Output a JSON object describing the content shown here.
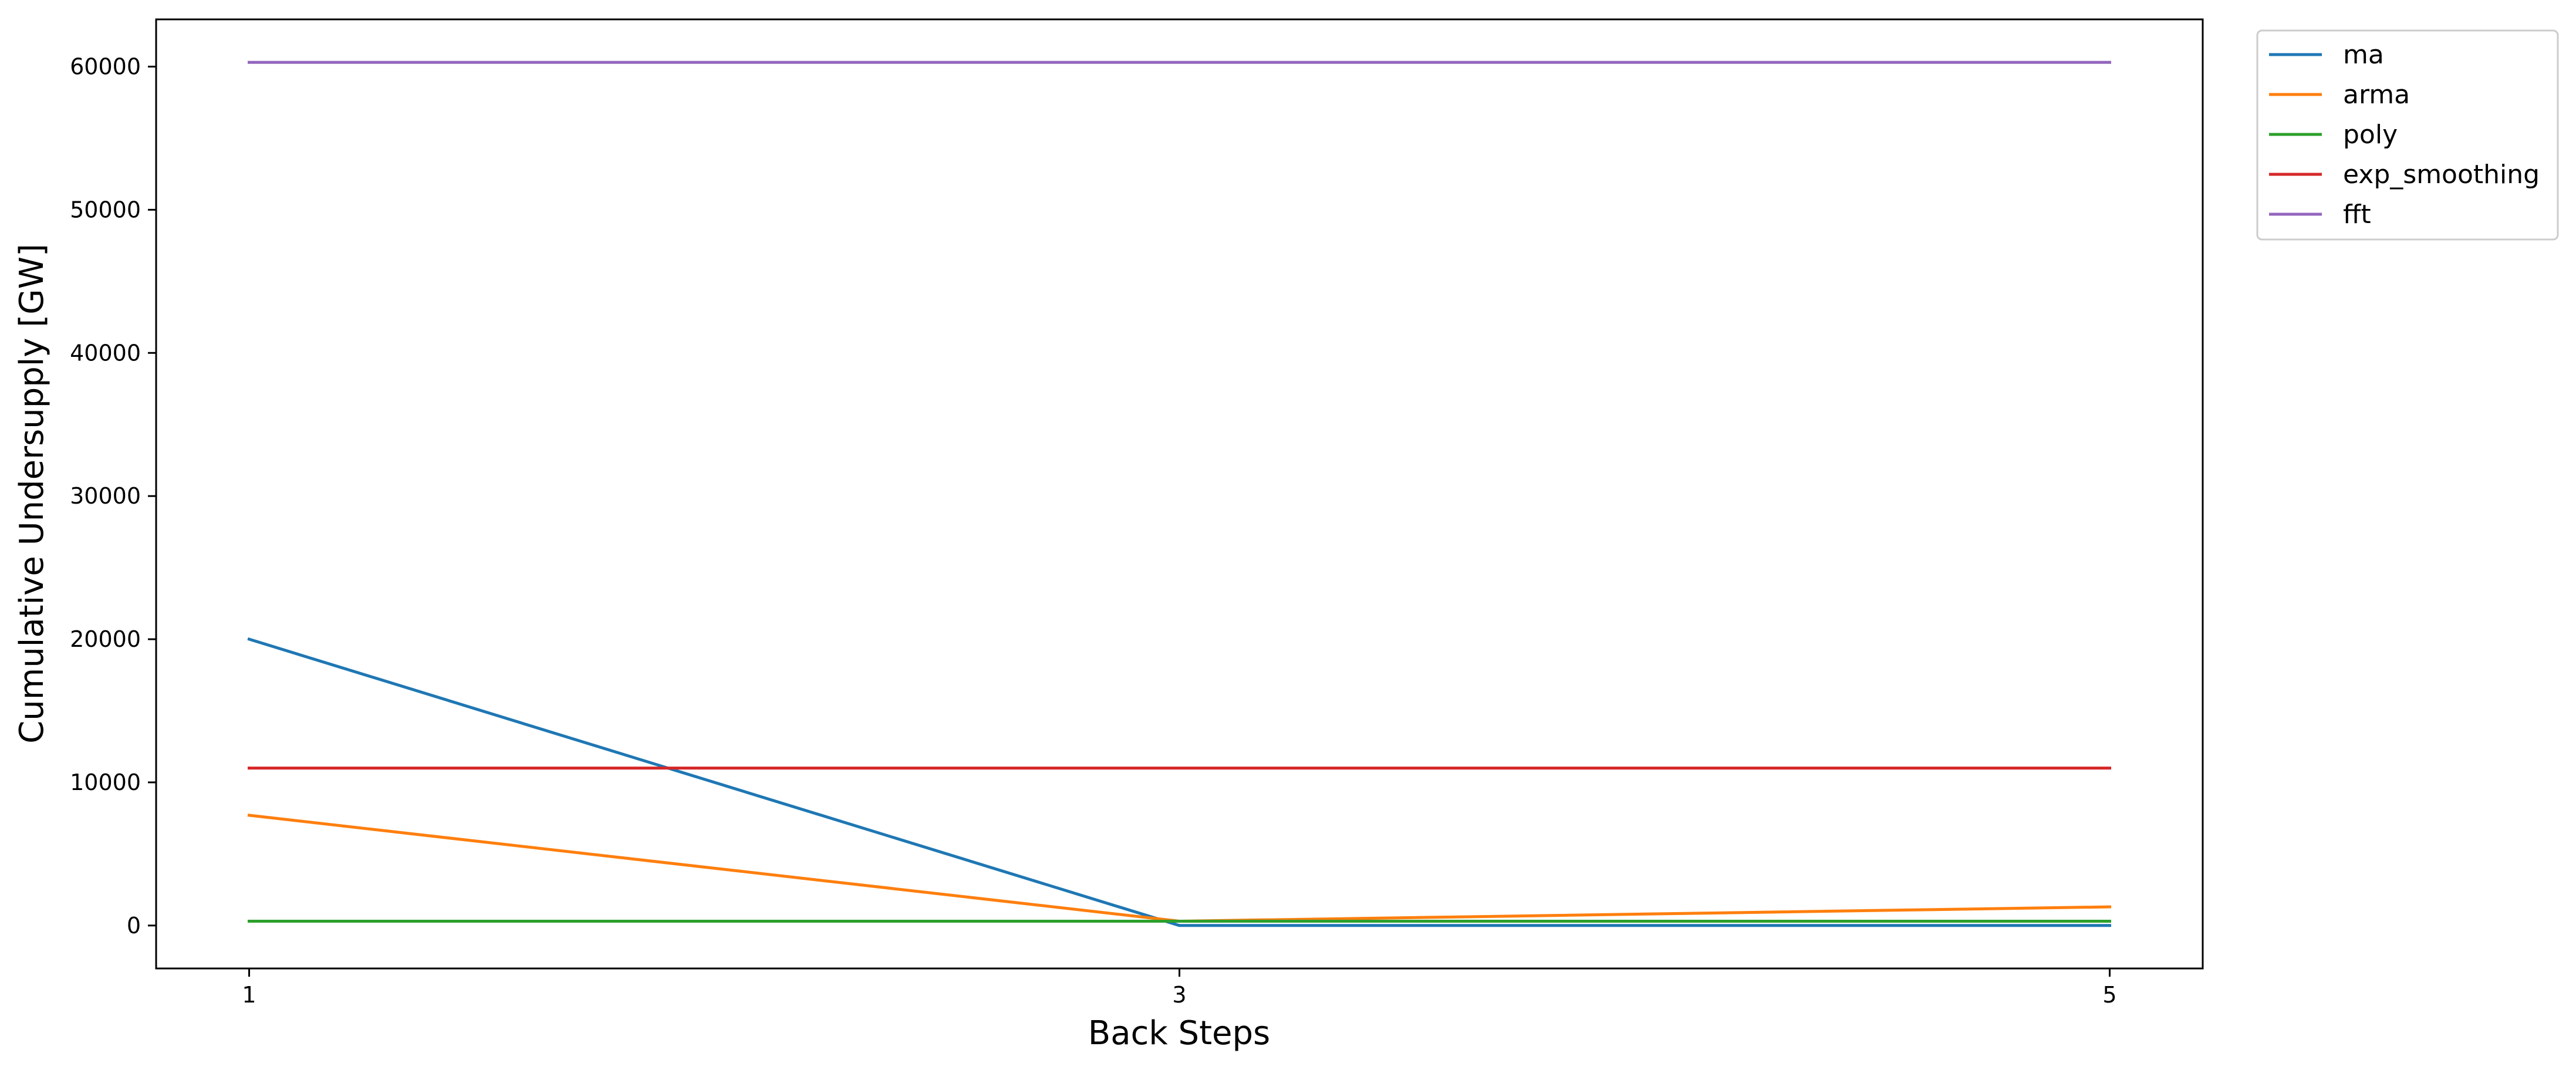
{
  "chart_data": {
    "type": "line",
    "xlabel": "Back Steps",
    "ylabel": "Cumulative Undersupply [GW]",
    "x": [
      1,
      3,
      5
    ],
    "xticks": [
      "1",
      "3",
      "5"
    ],
    "xlim": [
      0.8,
      5.2
    ],
    "ylim": [
      -3000,
      63300
    ],
    "yticks": [
      0,
      10000,
      20000,
      30000,
      40000,
      50000,
      60000
    ],
    "ytick_labels": [
      "0",
      "10000",
      "20000",
      "30000",
      "40000",
      "50000",
      "60000"
    ],
    "grid": false,
    "legend_position": "upper-right, outside plot",
    "series": [
      {
        "name": "ma",
        "color": "#1f77b4",
        "values": [
          20000,
          0,
          0
        ]
      },
      {
        "name": "arma",
        "color": "#ff7f0e",
        "values": [
          7700,
          300,
          1300
        ]
      },
      {
        "name": "poly",
        "color": "#2ca02c",
        "values": [
          300,
          300,
          300
        ]
      },
      {
        "name": "exp_smoothing",
        "color": "#d62728",
        "values": [
          11000,
          11000,
          11000
        ]
      },
      {
        "name": "fft",
        "color": "#9467bd",
        "values": [
          60300,
          60300,
          60300
        ]
      }
    ]
  }
}
